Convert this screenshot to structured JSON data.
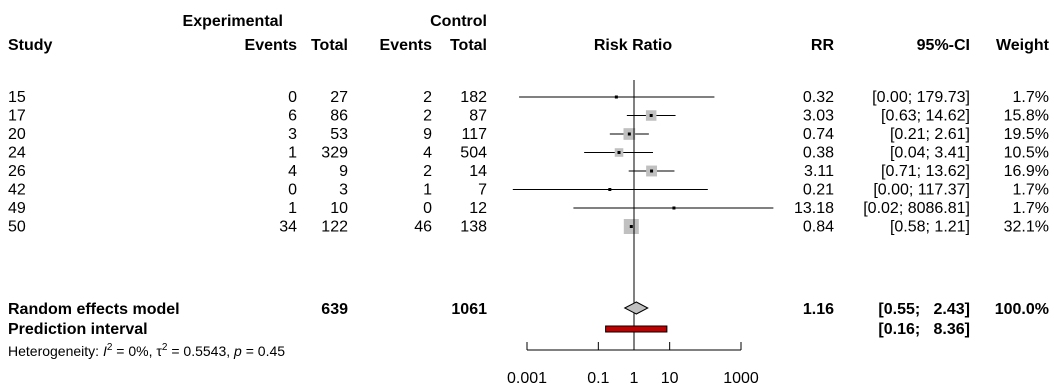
{
  "chart_data": {
    "type": "forest",
    "headers": {
      "study": "Study",
      "experimental": "Experimental",
      "control": "Control",
      "events": "Events",
      "total": "Total",
      "risk_ratio": "Risk Ratio",
      "rr": "RR",
      "ci": "95%-CI",
      "weight": "Weight"
    },
    "x_axis": {
      "scale": "log",
      "ticks": [
        "0.001",
        "0.1",
        "1",
        "10",
        "1000"
      ],
      "tick_values": [
        0.001,
        0.1,
        1,
        10,
        1000
      ],
      "range": [
        0.001,
        1000
      ],
      "reference_line": 1
    },
    "studies": [
      {
        "name": "15",
        "exp_events": "0",
        "exp_total": "27",
        "ctl_events": "2",
        "ctl_total": "182",
        "rr_text": "0.32",
        "ci_text": "[0.00;  179.73]",
        "weight_text": "1.7%",
        "rr": 0.32,
        "lower": 0.0006,
        "upper": 179.73,
        "weight": 1.7
      },
      {
        "name": "17",
        "exp_events": "6",
        "exp_total": "86",
        "ctl_events": "2",
        "ctl_total": "87",
        "rr_text": "3.03",
        "ci_text": "[0.63;  14.62]",
        "weight_text": "15.8%",
        "rr": 3.03,
        "lower": 0.63,
        "upper": 14.62,
        "weight": 15.8
      },
      {
        "name": "20",
        "exp_events": "3",
        "exp_total": "53",
        "ctl_events": "9",
        "ctl_total": "117",
        "rr_text": "0.74",
        "ci_text": "[0.21;   2.61]",
        "weight_text": "19.5%",
        "rr": 0.74,
        "lower": 0.21,
        "upper": 2.61,
        "weight": 19.5
      },
      {
        "name": "24",
        "exp_events": "1",
        "exp_total": "329",
        "ctl_events": "4",
        "ctl_total": "504",
        "rr_text": "0.38",
        "ci_text": "[0.04;   3.41]",
        "weight_text": "10.5%",
        "rr": 0.38,
        "lower": 0.04,
        "upper": 3.41,
        "weight": 10.5
      },
      {
        "name": "26",
        "exp_events": "4",
        "exp_total": "9",
        "ctl_events": "2",
        "ctl_total": "14",
        "rr_text": "3.11",
        "ci_text": "[0.71;  13.62]",
        "weight_text": "16.9%",
        "rr": 3.11,
        "lower": 0.71,
        "upper": 13.62,
        "weight": 16.9
      },
      {
        "name": "42",
        "exp_events": "0",
        "exp_total": "3",
        "ctl_events": "1",
        "ctl_total": "7",
        "rr_text": "0.21",
        "ci_text": "[0.00;  117.37]",
        "weight_text": "1.7%",
        "rr": 0.21,
        "lower": 0.0004,
        "upper": 117.37,
        "weight": 1.7
      },
      {
        "name": "49",
        "exp_events": "1",
        "exp_total": "10",
        "ctl_events": "0",
        "ctl_total": "12",
        "rr_text": "13.18",
        "ci_text": "[0.02; 8086.81]",
        "weight_text": "1.7%",
        "rr": 13.18,
        "lower": 0.02,
        "upper": 8086.81,
        "weight": 1.7
      },
      {
        "name": "50",
        "exp_events": "34",
        "exp_total": "122",
        "ctl_events": "46",
        "ctl_total": "138",
        "rr_text": "0.84",
        "ci_text": "[0.58;   1.21]",
        "weight_text": "32.1%",
        "rr": 0.84,
        "lower": 0.58,
        "upper": 1.21,
        "weight": 32.1
      }
    ],
    "random_effects": {
      "label": "Random effects model",
      "exp_total": "639",
      "ctl_total": "1061",
      "rr_text": "1.16",
      "ci_text": "[0.55;   2.43]",
      "weight_text": "100.0%",
      "rr": 1.16,
      "lower": 0.55,
      "upper": 2.43
    },
    "prediction_interval": {
      "label": "Prediction interval",
      "ci_text": "[0.16;   8.36]",
      "lower": 0.16,
      "upper": 8.36,
      "color": "#c00000"
    },
    "heterogeneity": {
      "prefix": "Heterogeneity: ",
      "i_symbol": "I",
      "i_sup": "2",
      "i_value": " = 0%, ",
      "tau_symbol": "τ",
      "tau_sup": "2",
      "tau_value": " = 0.5543, ",
      "p_symbol": "p",
      "p_value": " = 0.45"
    },
    "colors": {
      "square": "#c0c0c0",
      "line": "#000000",
      "pi_bar": "#c00000"
    }
  }
}
